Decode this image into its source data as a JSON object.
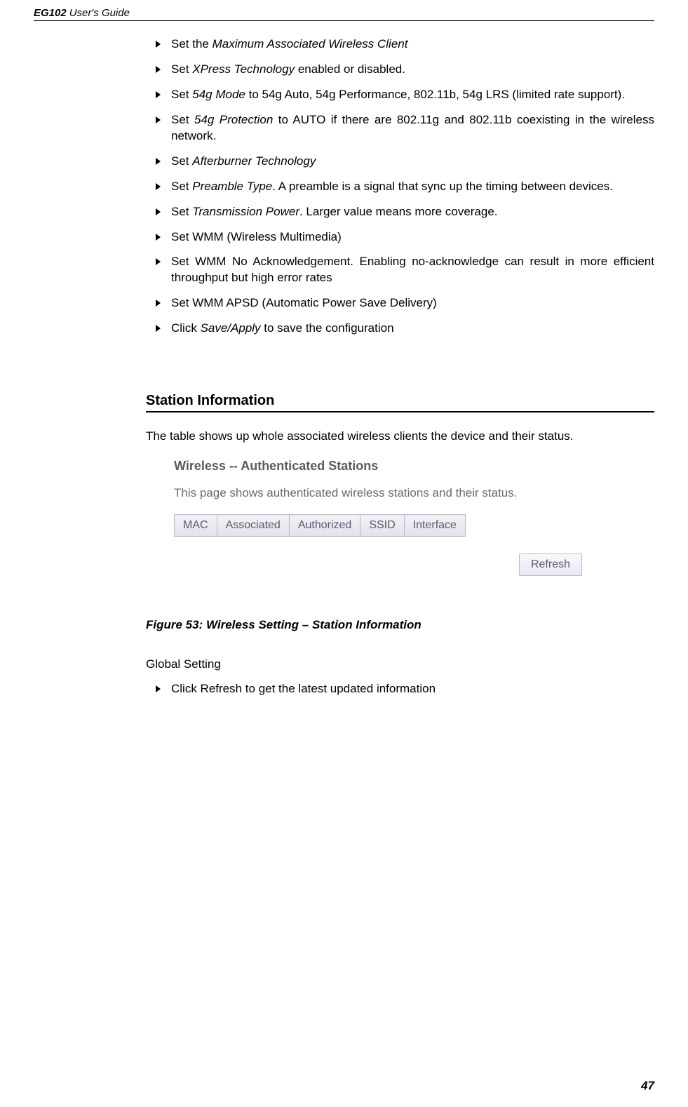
{
  "header": {
    "model": "EG102",
    "rest": "User's Guide"
  },
  "bullets": [
    {
      "pre": "Set the ",
      "it": "Maximum Associated Wireless Client",
      "post": ""
    },
    {
      "pre": "Set ",
      "it": "XPress Technology",
      "post": " enabled or disabled."
    },
    {
      "pre": "Set ",
      "it": "54g Mode",
      "post": " to 54g Auto, 54g Performance, 802.11b, 54g LRS (limited rate support)."
    },
    {
      "pre": "Set ",
      "it": "54g Protection",
      "post": " to AUTO if there are 802.11g and 802.11b coexisting in the wireless network."
    },
    {
      "pre": "Set ",
      "it": "Afterburner Technology",
      "post": ""
    },
    {
      "pre": "Set ",
      "it": "Preamble Type",
      "post": ". A preamble is a signal that sync up the timing between devices."
    },
    {
      "pre": "Set ",
      "it": "Transmission Power",
      "post": ". Larger value means more coverage."
    },
    {
      "pre": "Set WMM (Wireless Multimedia)",
      "it": "",
      "post": ""
    },
    {
      "pre": "Set WMM No Acknowledgement. Enabling no-acknowledge can result in more efficient throughput but high error rates",
      "it": "",
      "post": ""
    },
    {
      "pre": "Set WMM APSD (Automatic Power Save Delivery)",
      "it": "",
      "post": ""
    },
    {
      "pre": "Click ",
      "it": "Save/Apply",
      "post": " to save the configuration"
    }
  ],
  "section": {
    "title": "Station Information",
    "intro": "The table shows up whole associated wireless clients the device and their status."
  },
  "wifi_panel": {
    "title": "Wireless -- Authenticated Stations",
    "desc": "This page shows authenticated wireless stations and their status.",
    "columns": [
      "MAC",
      "Associated",
      "Authorized",
      "SSID",
      "Interface"
    ],
    "refresh_label": "Refresh",
    "colors": {
      "header_bg_top": "#f2f2f8",
      "header_bg_bottom": "#e2e2ee",
      "border": "#b8b8c4",
      "text": "#5a5a66",
      "btn_bg_top": "#f8f8fc",
      "btn_bg_bottom": "#e8e8f2",
      "btn_border": "#b8b8d0"
    }
  },
  "figure_caption": "Figure 53: Wireless Setting – Station Information",
  "global": {
    "heading": "Global Setting",
    "items": [
      "Click Refresh to get the latest updated information"
    ]
  },
  "page_number": "47"
}
